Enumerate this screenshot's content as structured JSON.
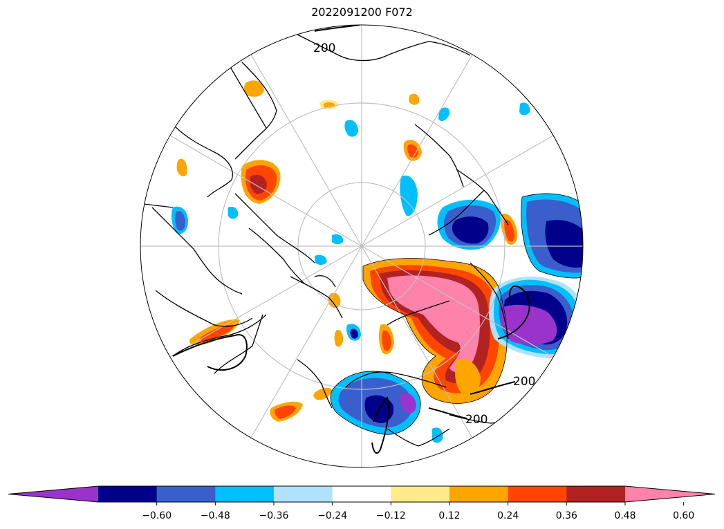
{
  "title": "2022091200 F072",
  "contour_labels": [
    "200",
    "200",
    "200"
  ],
  "colorbar": {
    "ticks": [
      "−0.60",
      "−0.48",
      "−0.36",
      "−0.24",
      "−0.12",
      "0.12",
      "0.24",
      "0.36",
      "0.48",
      "0.60"
    ],
    "colors": [
      "#9933cc",
      "#00008b",
      "#3a5fcd",
      "#00bfff",
      "#b0e2ff",
      "#ffffff",
      "#ffeb8a",
      "#ffa500",
      "#ff4500",
      "#b22222",
      "#ff82ab"
    ]
  },
  "colors": {
    "coast": "#000000",
    "grid": "#c0c0c0",
    "contour": "#000000"
  }
}
